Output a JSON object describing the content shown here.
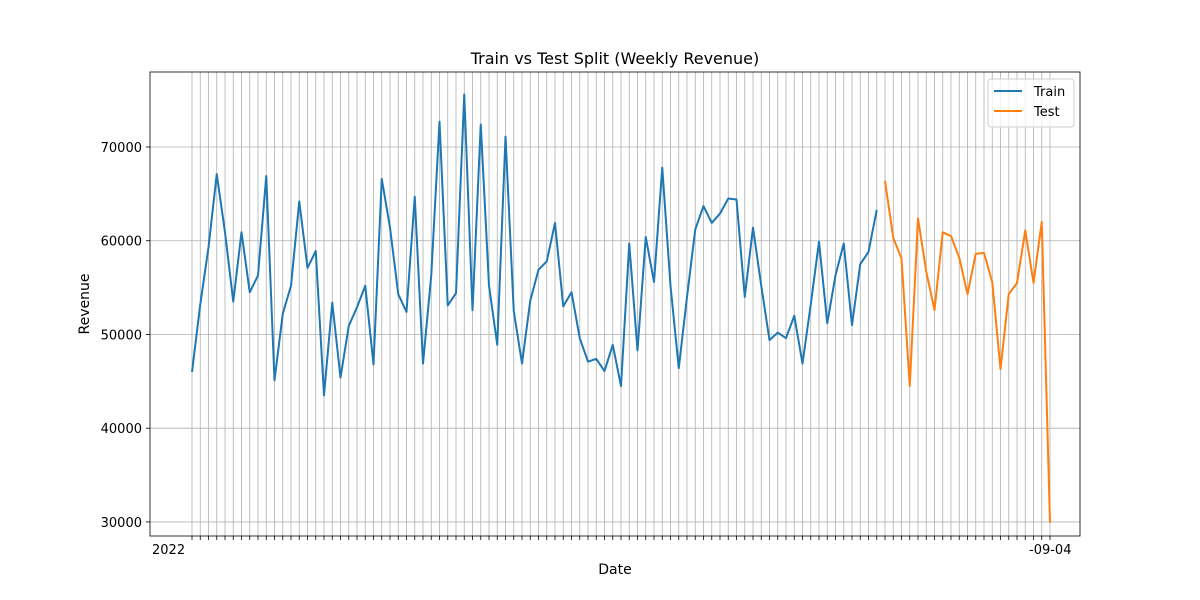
{
  "chart_data": {
    "type": "line",
    "title": "Train vs Test Split (Weekly Revenue)",
    "xlabel": "Date",
    "ylabel": "Revenue",
    "ylim": [
      28500,
      78000
    ],
    "yticks": [
      30000,
      40000,
      50000,
      60000,
      70000
    ],
    "grid": true,
    "legend_position": "top-right",
    "x_tick_labels_first": "2022",
    "x_tick_labels_last": "-09-04",
    "series": [
      {
        "name": "Train",
        "color": "#1f77b4",
        "start_index": 0,
        "values": [
          46000,
          53200,
          59300,
          67100,
          60900,
          53500,
          60900,
          54500,
          56300,
          66900,
          45100,
          52200,
          55200,
          64200,
          57100,
          58900,
          43500,
          53400,
          45400,
          50900,
          52900,
          55200,
          46800,
          66600,
          61400,
          54300,
          52400,
          64700,
          46900,
          56300,
          72700,
          53100,
          54400,
          75600,
          52600,
          72400,
          55200,
          48900,
          71100,
          52500,
          46900,
          53600,
          56900,
          57800,
          61900,
          53000,
          54500,
          49600,
          47100,
          47400,
          46100,
          48900,
          44500,
          59700,
          48300,
          60400,
          55600,
          67800,
          55200,
          46400,
          54000,
          61200,
          63700,
          61900,
          62900,
          64500,
          64400,
          54000,
          61400,
          55200,
          49400,
          50200,
          49600,
          52000,
          46900,
          53200,
          59900,
          51200,
          56300,
          59700,
          51000,
          57500,
          58800,
          63300
        ]
      },
      {
        "name": "Test",
        "color": "#ff7f0e",
        "start_index": 84,
        "values": [
          66400,
          60300,
          58100,
          44500,
          62400,
          56700,
          52600,
          60900,
          60500,
          58200,
          54300,
          58600,
          58700,
          55600,
          46300,
          54300,
          55500,
          61100,
          55500,
          62000,
          29900
        ]
      }
    ]
  }
}
